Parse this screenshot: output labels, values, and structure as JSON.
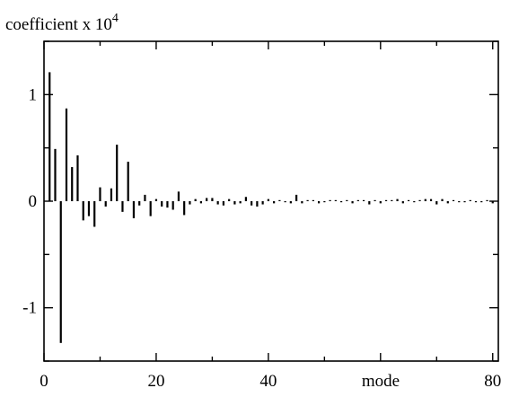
{
  "chart_data": {
    "type": "bar",
    "title": "",
    "ylabel_base": "coefficient x 10",
    "ylabel_exp": "4",
    "xlabel": "mode",
    "xlim": [
      0,
      81
    ],
    "ylim": [
      -1.5,
      1.5
    ],
    "xticks": [
      0,
      20,
      40,
      80
    ],
    "xtick_labels": [
      "0",
      "20",
      "40",
      "80"
    ],
    "yticks": [
      1,
      0,
      -1
    ],
    "ytick_labels": [
      "1",
      "0",
      "-1"
    ],
    "grid": false,
    "legend": "none",
    "bar_color": "#000000",
    "x": [
      1,
      2,
      3,
      4,
      5,
      6,
      7,
      8,
      9,
      10,
      11,
      12,
      13,
      14,
      15,
      16,
      17,
      18,
      19,
      20,
      21,
      22,
      23,
      24,
      25,
      26,
      27,
      28,
      29,
      30,
      31,
      32,
      33,
      34,
      35,
      36,
      37,
      38,
      39,
      40,
      41,
      42,
      43,
      44,
      45,
      46,
      47,
      48,
      49,
      50,
      51,
      52,
      53,
      54,
      55,
      56,
      57,
      58,
      59,
      60,
      61,
      62,
      63,
      64,
      65,
      66,
      67,
      68,
      69,
      70,
      71,
      72,
      73,
      74,
      75,
      76,
      77,
      78,
      79,
      80
    ],
    "values": [
      1.21,
      0.49,
      -1.33,
      0.87,
      0.32,
      0.43,
      -0.18,
      -0.14,
      -0.24,
      0.13,
      -0.05,
      0.12,
      0.53,
      -0.1,
      0.37,
      -0.16,
      -0.04,
      0.06,
      -0.14,
      0.02,
      -0.05,
      -0.06,
      -0.08,
      0.09,
      -0.13,
      -0.03,
      0.02,
      -0.02,
      0.03,
      0.03,
      -0.03,
      -0.04,
      0.02,
      -0.03,
      -0.02,
      0.04,
      -0.04,
      -0.05,
      -0.03,
      0.02,
      -0.02,
      0.01,
      -0.01,
      -0.02,
      0.06,
      -0.02,
      0.01,
      0.01,
      -0.02,
      -0.01,
      0.01,
      0.01,
      -0.01,
      0.01,
      -0.02,
      0.01,
      0.01,
      -0.03,
      0.01,
      -0.02,
      0.01,
      0.01,
      0.02,
      -0.02,
      0.01,
      -0.01,
      0.01,
      0.02,
      0.02,
      -0.03,
      0.02,
      -0.02,
      0.01,
      -0.01,
      -0.01,
      0.01,
      -0.01,
      -0.01,
      0.01,
      -0.02
    ]
  }
}
